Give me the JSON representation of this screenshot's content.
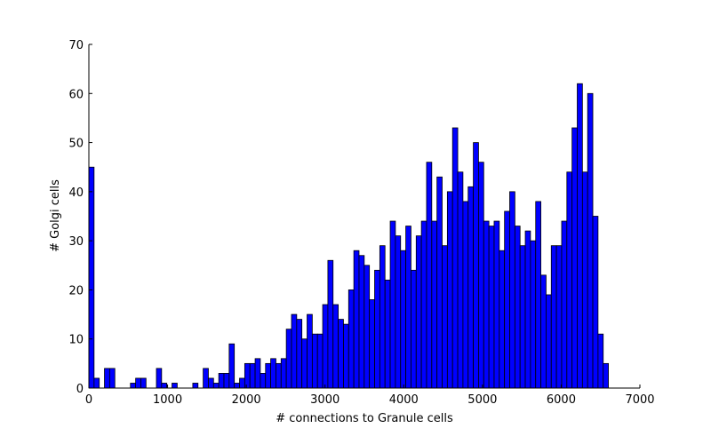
{
  "chart_data": {
    "type": "histogram",
    "xlabel": "# connections to Granule cells",
    "ylabel": "# Golgi cells",
    "color": "#0000ff",
    "bins": [
      0,
      66,
      132,
      198,
      264,
      330,
      396,
      462,
      528,
      594,
      660,
      726,
      792,
      858,
      924,
      990,
      1056,
      1122,
      1188,
      1254,
      1320,
      1386,
      1452,
      1518,
      1584,
      1650,
      1716,
      1782,
      1848,
      1914,
      1980,
      2046,
      2112,
      2178,
      2244,
      2310,
      2376,
      2442,
      2508,
      2574,
      2640,
      2706,
      2772,
      2838,
      2904,
      2970,
      3036,
      3102,
      3168,
      3234,
      3300,
      3366,
      3432,
      3498,
      3564,
      3630,
      3696,
      3762,
      3828,
      3894,
      3960,
      4026,
      4092,
      4158,
      4224,
      4290,
      4356,
      4422,
      4488,
      4554,
      4620,
      4686,
      4752,
      4818,
      4884,
      4950,
      5016,
      5082,
      5148,
      5214,
      5280,
      5346,
      5412,
      5478,
      5544,
      5610,
      5676,
      5742,
      5808,
      5874,
      5940,
      6006,
      6072,
      6138,
      6204,
      6270,
      6336,
      6402,
      6468,
      6534,
      6600
    ],
    "counts": [
      45,
      2,
      0,
      4,
      4,
      0,
      0,
      0,
      1,
      2,
      2,
      0,
      0,
      4,
      1,
      0,
      1,
      0,
      0,
      0,
      1,
      0,
      4,
      2,
      1,
      3,
      3,
      9,
      1,
      2,
      5,
      5,
      6,
      3,
      5,
      6,
      5,
      6,
      12,
      15,
      14,
      10,
      15,
      11,
      11,
      17,
      26,
      17,
      14,
      13,
      20,
      28,
      27,
      25,
      18,
      24,
      29,
      22,
      34,
      31,
      28,
      33,
      24,
      31,
      34,
      46,
      34,
      43,
      29,
      40,
      53,
      44,
      38,
      41,
      50,
      46,
      34,
      33,
      34,
      28,
      36,
      40,
      33,
      29,
      32,
      30,
      38,
      23,
      19,
      29,
      29,
      34,
      44,
      53,
      62,
      44,
      60,
      35,
      11,
      5
    ],
    "xlim": [
      0,
      7000
    ],
    "xticks": [
      0,
      1000,
      2000,
      3000,
      4000,
      5000,
      6000,
      7000
    ],
    "ylim": [
      0,
      70
    ],
    "yticks": [
      0,
      10,
      20,
      30,
      40,
      50,
      60,
      70
    ]
  }
}
